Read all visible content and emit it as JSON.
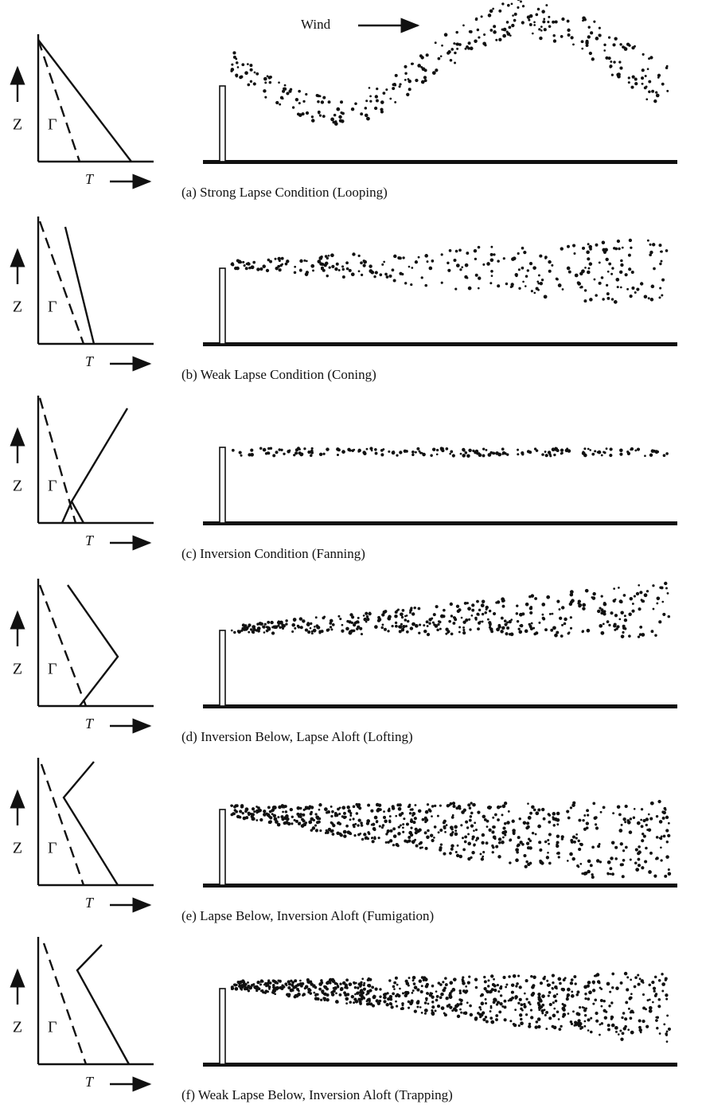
{
  "wind_label": "Wind",
  "panels": [
    {
      "z_label": "Z",
      "gamma_label": "Γ",
      "t_label": "T",
      "caption": "(a) Strong Lapse Condition (Looping)"
    },
    {
      "z_label": "Z",
      "gamma_label": "Γ",
      "t_label": "T",
      "caption": "(b) Weak Lapse Condition (Coning)"
    },
    {
      "z_label": "Z",
      "gamma_label": "Γ",
      "t_label": "T",
      "caption": "(c) Inversion Condition (Fanning)"
    },
    {
      "z_label": "Z",
      "gamma_label": "Γ",
      "t_label": "T",
      "caption": "(d) Inversion Below, Lapse Aloft (Lofting)"
    },
    {
      "z_label": "Z",
      "gamma_label": "Γ",
      "t_label": "T",
      "caption": "(e) Lapse Below, Inversion Aloft (Fumigation)"
    },
    {
      "z_label": "Z",
      "gamma_label": "Γ",
      "t_label": "T",
      "caption": "(f) Weak Lapse Below, Inversion Aloft (Trapping)"
    }
  ]
}
